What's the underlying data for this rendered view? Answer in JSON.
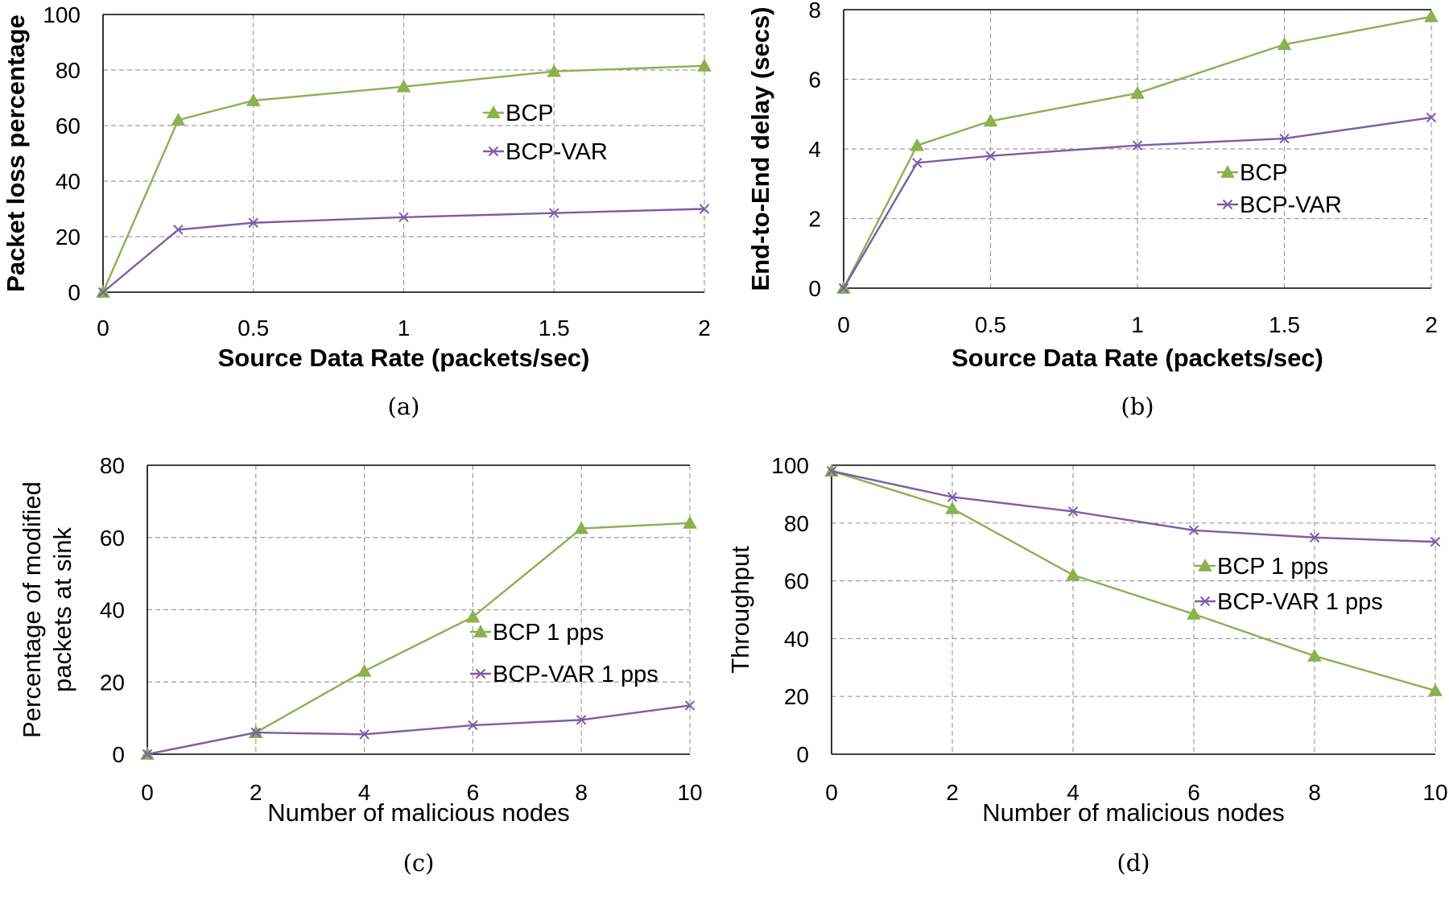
{
  "chart_data": [
    {
      "id": "a",
      "type": "line",
      "caption": "(a)",
      "xlabel": "Source Data Rate (packets/sec)",
      "ylabel": "Packet loss percentage",
      "xlim": [
        0,
        2
      ],
      "ylim": [
        0,
        100
      ],
      "xticks": [
        "0",
        "0.5",
        "1",
        "1.5",
        "2"
      ],
      "yticks": [
        "0",
        "20",
        "40",
        "60",
        "80",
        "100"
      ],
      "legend_position": "center-right",
      "series": [
        {
          "name": "BCP",
          "color": "#8db050",
          "marker": "triangle",
          "x": [
            0,
            0.25,
            0.5,
            1,
            1.5,
            2
          ],
          "y": [
            0,
            62,
            69,
            74,
            79.5,
            81.5
          ]
        },
        {
          "name": "BCP-VAR",
          "color": "#7b5ea7",
          "marker": "x",
          "x": [
            0,
            0.25,
            0.5,
            1,
            1.5,
            2
          ],
          "y": [
            0,
            22.5,
            25,
            27,
            28.5,
            30
          ]
        }
      ]
    },
    {
      "id": "b",
      "type": "line",
      "caption": "(b)",
      "xlabel": "Source Data Rate (packets/sec)",
      "ylabel": "End-to-End delay (secs)",
      "xlim": [
        0,
        2
      ],
      "ylim": [
        0,
        8
      ],
      "xticks": [
        "0",
        "0.5",
        "1",
        "1.5",
        "2"
      ],
      "yticks": [
        "0",
        "2",
        "4",
        "6",
        "8"
      ],
      "legend_position": "center-right",
      "series": [
        {
          "name": "BCP",
          "color": "#8db050",
          "marker": "triangle",
          "x": [
            0,
            0.25,
            0.5,
            1,
            1.5,
            2
          ],
          "y": [
            0,
            4.1,
            4.8,
            5.6,
            7.0,
            7.8
          ]
        },
        {
          "name": "BCP-VAR",
          "color": "#7b5ea7",
          "marker": "x",
          "x": [
            0,
            0.25,
            0.5,
            1,
            1.5,
            2
          ],
          "y": [
            0,
            3.6,
            3.8,
            4.1,
            4.3,
            4.9
          ]
        }
      ]
    },
    {
      "id": "c",
      "type": "line",
      "caption": "(c)",
      "xlabel": "Number of malicious nodes",
      "ylabel": [
        "Percentage of modified",
        "packets at sink"
      ],
      "xlim": [
        0,
        10
      ],
      "ylim": [
        0,
        80
      ],
      "xticks": [
        "0",
        "2",
        "4",
        "6",
        "8",
        "10"
      ],
      "yticks": [
        "0",
        "20",
        "40",
        "60",
        "80"
      ],
      "legend_position": "center-right",
      "series": [
        {
          "name": "BCP 1 pps",
          "color": "#8db050",
          "marker": "triangle",
          "x": [
            0,
            2,
            4,
            6,
            8,
            10
          ],
          "y": [
            0,
            6,
            23,
            38,
            62.5,
            64
          ]
        },
        {
          "name": "BCP-VAR 1 pps",
          "color": "#7b5ea7",
          "marker": "x",
          "x": [
            0,
            2,
            4,
            6,
            8,
            10
          ],
          "y": [
            0,
            6,
            5.5,
            8,
            9.5,
            13.5
          ]
        }
      ]
    },
    {
      "id": "d",
      "type": "line",
      "caption": "(d)",
      "xlabel": "Number of malicious nodes",
      "ylabel": "Throughput",
      "xlim": [
        0,
        10
      ],
      "ylim": [
        0,
        100
      ],
      "xticks": [
        "0",
        "2",
        "4",
        "6",
        "8",
        "10"
      ],
      "yticks": [
        "0",
        "20",
        "40",
        "60",
        "80",
        "100"
      ],
      "legend_position": "center-right",
      "series": [
        {
          "name": "BCP 1 pps",
          "color": "#8db050",
          "marker": "triangle",
          "x": [
            0,
            2,
            4,
            6,
            8,
            10
          ],
          "y": [
            98,
            85,
            62,
            48.5,
            34,
            22
          ]
        },
        {
          "name": "BCP-VAR 1 pps",
          "color": "#7b5ea7",
          "marker": "x",
          "x": [
            0,
            2,
            4,
            6,
            8,
            10
          ],
          "y": [
            98,
            89,
            84,
            77.5,
            75,
            73.5
          ]
        }
      ]
    }
  ]
}
